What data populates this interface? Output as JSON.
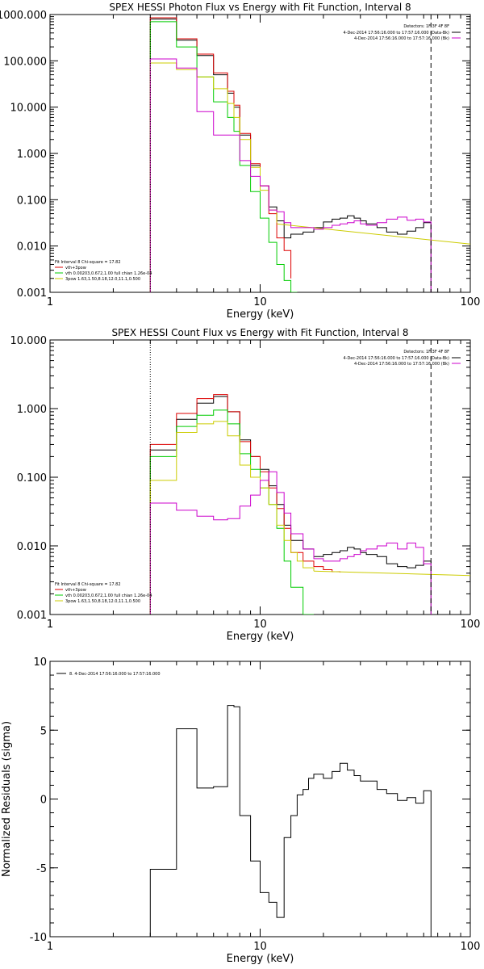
{
  "chart_data": [
    {
      "type": "line",
      "title": "SPEX HESSI Photon Flux vs Energy with Fit Function, Interval 8",
      "xlabel": "Energy (keV)",
      "ylabel": "",
      "x_scale": "log",
      "y_scale": "log",
      "xlim": [
        1,
        100
      ],
      "ylim": [
        0.001,
        1000
      ],
      "x_ticks": [
        1,
        10,
        100
      ],
      "x_tick_labels": [
        "1",
        "10",
        "100"
      ],
      "y_ticks": [
        0.001,
        0.01,
        0.1,
        1,
        10,
        100,
        1000
      ],
      "y_tick_labels": [
        "0.001",
        "0.010",
        "0.100",
        "1.000",
        "10.000",
        "100.000",
        "1000.000"
      ],
      "vlines": [
        {
          "x": 3,
          "style": "dotted"
        },
        {
          "x": 65,
          "style": "dashed"
        }
      ],
      "legend_top_right": {
        "title": "Detectors: 1F 3F 4F 8F",
        "entries": [
          {
            "label": "4-Dec-2014 17:56:16.000 to 17:57:16.000 (Data-Bk)",
            "color": "#000000"
          },
          {
            "label": "4-Dec-2014 17:56:16.000 to 17:57:16.000 (Bk)",
            "color": "#cc00cc"
          }
        ]
      },
      "legend_bottom_left": {
        "title": "Fit Interval 8   Chi-square = 17.82",
        "entries": [
          {
            "label": "vth+3pow",
            "color": "#dd0000"
          },
          {
            "label": "vth 0.00203,0.672,1.00  full chian 1.26e-04",
            "color": "#00cc00"
          },
          {
            "label": "3pow 1.63,1.50,8.18,12.0,11.1,0.500",
            "color": "#cccc00"
          }
        ]
      },
      "series": [
        {
          "name": "Data-Bk",
          "color": "#000000",
          "edges": [
            3,
            4,
            5,
            6,
            7,
            7.5,
            8,
            9,
            10,
            11,
            12,
            13,
            14,
            16,
            18,
            20,
            22,
            24,
            26,
            28,
            30,
            32,
            36,
            40,
            45,
            50,
            55,
            60,
            65
          ],
          "values": [
            800,
            280,
            130,
            50,
            20,
            10,
            2.5,
            0.55,
            0.2,
            0.07,
            0.035,
            0.015,
            0.018,
            0.02,
            0.025,
            0.033,
            0.038,
            0.04,
            0.045,
            0.04,
            0.035,
            0.03,
            0.025,
            0.02,
            0.018,
            0.021,
            0.025,
            0.032
          ]
        },
        {
          "name": "vth+3pow",
          "color": "#dd0000",
          "edges": [
            3,
            4,
            5,
            6,
            7,
            7.5,
            8,
            9,
            10,
            11,
            12,
            13,
            14
          ],
          "values": [
            850,
            300,
            140,
            55,
            22,
            11,
            2.7,
            0.6,
            0.2,
            0.05,
            0.015,
            0.008,
            0.002
          ]
        },
        {
          "name": "vth",
          "color": "#00cc00",
          "edges": [
            3,
            4,
            5,
            6,
            7,
            7.5,
            8,
            9,
            10,
            11,
            12,
            13,
            14,
            15
          ],
          "values": [
            700,
            200,
            45,
            13,
            6,
            3,
            0.55,
            0.15,
            0.04,
            0.012,
            0.004,
            0.0018,
            0.001
          ]
        },
        {
          "name": "3pow",
          "color": "#cccc00",
          "fit_edges": [
            3,
            4,
            5,
            6,
            7,
            7.5,
            8,
            9,
            10,
            11,
            12
          ],
          "fit_values": [
            90,
            65,
            45,
            25,
            12,
            6,
            2,
            0.5,
            0.16,
            0.06,
            0.032
          ],
          "curve_x": [
            12,
            100
          ],
          "curve_y": [
            0.03,
            0.011
          ]
        },
        {
          "name": "Bk",
          "color": "#cc00cc",
          "edges": [
            3,
            4,
            5,
            6,
            7,
            8,
            9,
            10,
            11,
            12,
            13,
            14,
            16,
            18,
            20,
            22,
            24,
            26,
            28,
            30,
            32,
            36,
            40,
            45,
            50,
            55,
            60,
            65
          ],
          "values": [
            110,
            70,
            8,
            2.5,
            2.5,
            0.7,
            0.32,
            0.2,
            0.06,
            0.055,
            0.032,
            0.025,
            0.025,
            0.023,
            0.025,
            0.028,
            0.03,
            0.032,
            0.035,
            0.03,
            0.028,
            0.032,
            0.038,
            0.042,
            0.036,
            0.038,
            0.033
          ]
        }
      ]
    },
    {
      "type": "line",
      "title": "SPEX HESSI Count Flux vs Energy with Fit Function, Interval 8",
      "xlabel": "Energy (keV)",
      "ylabel": "",
      "x_scale": "log",
      "y_scale": "log",
      "xlim": [
        1,
        100
      ],
      "ylim": [
        0.001,
        10
      ],
      "x_ticks": [
        1,
        10,
        100
      ],
      "x_tick_labels": [
        "1",
        "10",
        "100"
      ],
      "y_ticks": [
        0.001,
        0.01,
        0.1,
        1,
        10
      ],
      "y_tick_labels": [
        "0.001",
        "0.010",
        "0.100",
        "1.000",
        "10.000"
      ],
      "vlines": [
        {
          "x": 3,
          "style": "dotted"
        },
        {
          "x": 65,
          "style": "dashed"
        }
      ],
      "legend_top_right": {
        "title": "Detectors: 1F 3F 4F 8F",
        "entries": [
          {
            "label": "4-Dec-2014 17:56:16.000 to 17:57:16.000 (Data-Bk)",
            "color": "#000000"
          },
          {
            "label": "4-Dec-2014 17:56:16.000 to 17:57:16.000 (Bk)",
            "color": "#cc00cc"
          }
        ]
      },
      "legend_bottom_left": {
        "title": "Fit Interval 8   Chi-square = 17.82",
        "entries": [
          {
            "label": "vth+3pow",
            "color": "#dd0000"
          },
          {
            "label": "vth 0.00203,0.672,1.00  full chian 1.26e-04",
            "color": "#00cc00"
          },
          {
            "label": "3pow 1.63,1.50,8.18,12.0,11.1,0.500",
            "color": "#cccc00"
          }
        ]
      },
      "series": [
        {
          "name": "Data-Bk",
          "color": "#000000",
          "edges": [
            3,
            4,
            5,
            6,
            7,
            8,
            9,
            10,
            11,
            12,
            13,
            14,
            16,
            18,
            20,
            22,
            24,
            26,
            28,
            30,
            32,
            36,
            40,
            45,
            50,
            55,
            60,
            65
          ],
          "values": [
            0.25,
            0.7,
            1.2,
            1.5,
            0.9,
            0.35,
            0.2,
            0.13,
            0.075,
            0.04,
            0.02,
            0.012,
            0.009,
            0.007,
            0.0075,
            0.008,
            0.0085,
            0.0095,
            0.009,
            0.008,
            0.0075,
            0.007,
            0.0055,
            0.005,
            0.0048,
            0.0052,
            0.006
          ]
        },
        {
          "name": "vth+3pow",
          "color": "#dd0000",
          "edges": [
            3,
            4,
            5,
            6,
            7,
            8,
            9,
            10,
            11,
            12,
            13,
            14,
            16,
            18,
            20,
            22,
            24
          ],
          "values": [
            0.3,
            0.85,
            1.4,
            1.6,
            0.9,
            0.33,
            0.2,
            0.12,
            0.07,
            0.035,
            0.018,
            0.008,
            0.006,
            0.005,
            0.0045,
            0.0042,
            0.0041
          ]
        },
        {
          "name": "vth",
          "color": "#00cc00",
          "edges": [
            3,
            4,
            5,
            6,
            7,
            8,
            9,
            10,
            11,
            12,
            13,
            14,
            16,
            18
          ],
          "values": [
            0.2,
            0.55,
            0.8,
            0.95,
            0.6,
            0.22,
            0.13,
            0.07,
            0.04,
            0.018,
            0.006,
            0.0025,
            0.001
          ]
        },
        {
          "name": "3pow",
          "color": "#cccc00",
          "fit_edges": [
            3,
            4,
            5,
            6,
            7,
            8,
            9,
            10,
            11,
            12,
            13,
            14,
            15,
            16,
            18
          ],
          "fit_values": [
            0.09,
            0.45,
            0.6,
            0.65,
            0.4,
            0.15,
            0.1,
            0.07,
            0.04,
            0.02,
            0.012,
            0.008,
            0.006,
            0.0048,
            0.0043
          ],
          "curve_x": [
            18,
            100
          ],
          "curve_y": [
            0.0043,
            0.0037
          ]
        },
        {
          "name": "Bk",
          "color": "#cc00cc",
          "edges": [
            3,
            4,
            5,
            6,
            7,
            8,
            9,
            10,
            11,
            12,
            13,
            14,
            16,
            18,
            20,
            22,
            24,
            26,
            28,
            30,
            32,
            36,
            40,
            45,
            50,
            55,
            60,
            65
          ],
          "values": [
            0.042,
            0.033,
            0.027,
            0.024,
            0.025,
            0.038,
            0.055,
            0.09,
            0.12,
            0.06,
            0.03,
            0.015,
            0.009,
            0.0065,
            0.006,
            0.006,
            0.0065,
            0.007,
            0.0075,
            0.0085,
            0.009,
            0.01,
            0.011,
            0.009,
            0.011,
            0.0095,
            0.0055
          ]
        }
      ]
    },
    {
      "type": "line",
      "title": "",
      "xlabel": "Energy (keV)",
      "ylabel": "Normalized Residuals (sigma)",
      "x_scale": "log",
      "y_scale": "linear",
      "xlim": [
        1,
        100
      ],
      "ylim": [
        -10,
        10
      ],
      "x_ticks": [
        1,
        10,
        100
      ],
      "x_tick_labels": [
        "1",
        "10",
        "100"
      ],
      "y_ticks": [
        -10,
        -5,
        0,
        5,
        10
      ],
      "y_tick_labels": [
        "-10",
        "-5",
        "0",
        "5",
        "10"
      ],
      "vlines": [],
      "legend_top_left": {
        "entries": [
          {
            "label": "8.  4-Dec-2014 17:56:16.000 to 17:57:16.000",
            "color": "#000000"
          }
        ]
      },
      "series": [
        {
          "name": "8.  4-Dec-2014 17:56:16.000 to 17:57:16.000",
          "color": "#000000",
          "edges": [
            3,
            4,
            5,
            6,
            7,
            7.5,
            8,
            9,
            10,
            11,
            12,
            13,
            14,
            15,
            16,
            17,
            18,
            20,
            22,
            24,
            26,
            28,
            30,
            32,
            36,
            40,
            45,
            50,
            55,
            60,
            65
          ],
          "values": [
            -5.1,
            5.1,
            0.8,
            0.9,
            6.8,
            6.7,
            -1.2,
            -4.5,
            -6.8,
            -7.5,
            -8.6,
            -2.8,
            -1.2,
            0.3,
            0.7,
            1.5,
            1.8,
            1.5,
            2.0,
            2.6,
            2.1,
            1.7,
            1.3,
            1.3,
            0.7,
            0.4,
            -0.1,
            0.1,
            -0.3,
            0.6
          ]
        }
      ]
    }
  ]
}
